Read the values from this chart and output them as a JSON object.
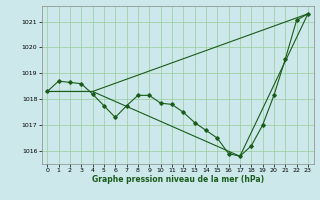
{
  "xlabel": "Graphe pression niveau de la mer (hPa)",
  "bg_color": "#cce8eb",
  "grid_color": "#99cc99",
  "line_color": "#1a5c1a",
  "marker_color": "#1a5c1a",
  "ylim": [
    1015.5,
    1021.6
  ],
  "xlim": [
    -0.5,
    23.5
  ],
  "yticks": [
    1016,
    1017,
    1018,
    1019,
    1020,
    1021
  ],
  "xticks": [
    0,
    1,
    2,
    3,
    4,
    5,
    6,
    7,
    8,
    9,
    10,
    11,
    12,
    13,
    14,
    15,
    16,
    17,
    18,
    19,
    20,
    21,
    22,
    23
  ],
  "series1_x": [
    0,
    1,
    2,
    3,
    4,
    5,
    6,
    7,
    8,
    9,
    10,
    11,
    12,
    13,
    14,
    15,
    16,
    17,
    18,
    19,
    20,
    21,
    22,
    23
  ],
  "series1_y": [
    1018.3,
    1018.7,
    1018.65,
    1018.6,
    1018.2,
    1017.75,
    1017.3,
    1017.75,
    1018.15,
    1018.15,
    1017.85,
    1017.8,
    1017.5,
    1017.1,
    1016.8,
    1016.5,
    1015.9,
    1015.8,
    1016.2,
    1017.0,
    1018.15,
    1019.55,
    1021.05,
    1021.3
  ],
  "series2_x": [
    0,
    4,
    23
  ],
  "series2_y": [
    1018.3,
    1018.3,
    1021.3
  ],
  "series3_x": [
    0,
    4,
    17,
    23
  ],
  "series3_y": [
    1018.3,
    1018.3,
    1015.8,
    1021.3
  ]
}
